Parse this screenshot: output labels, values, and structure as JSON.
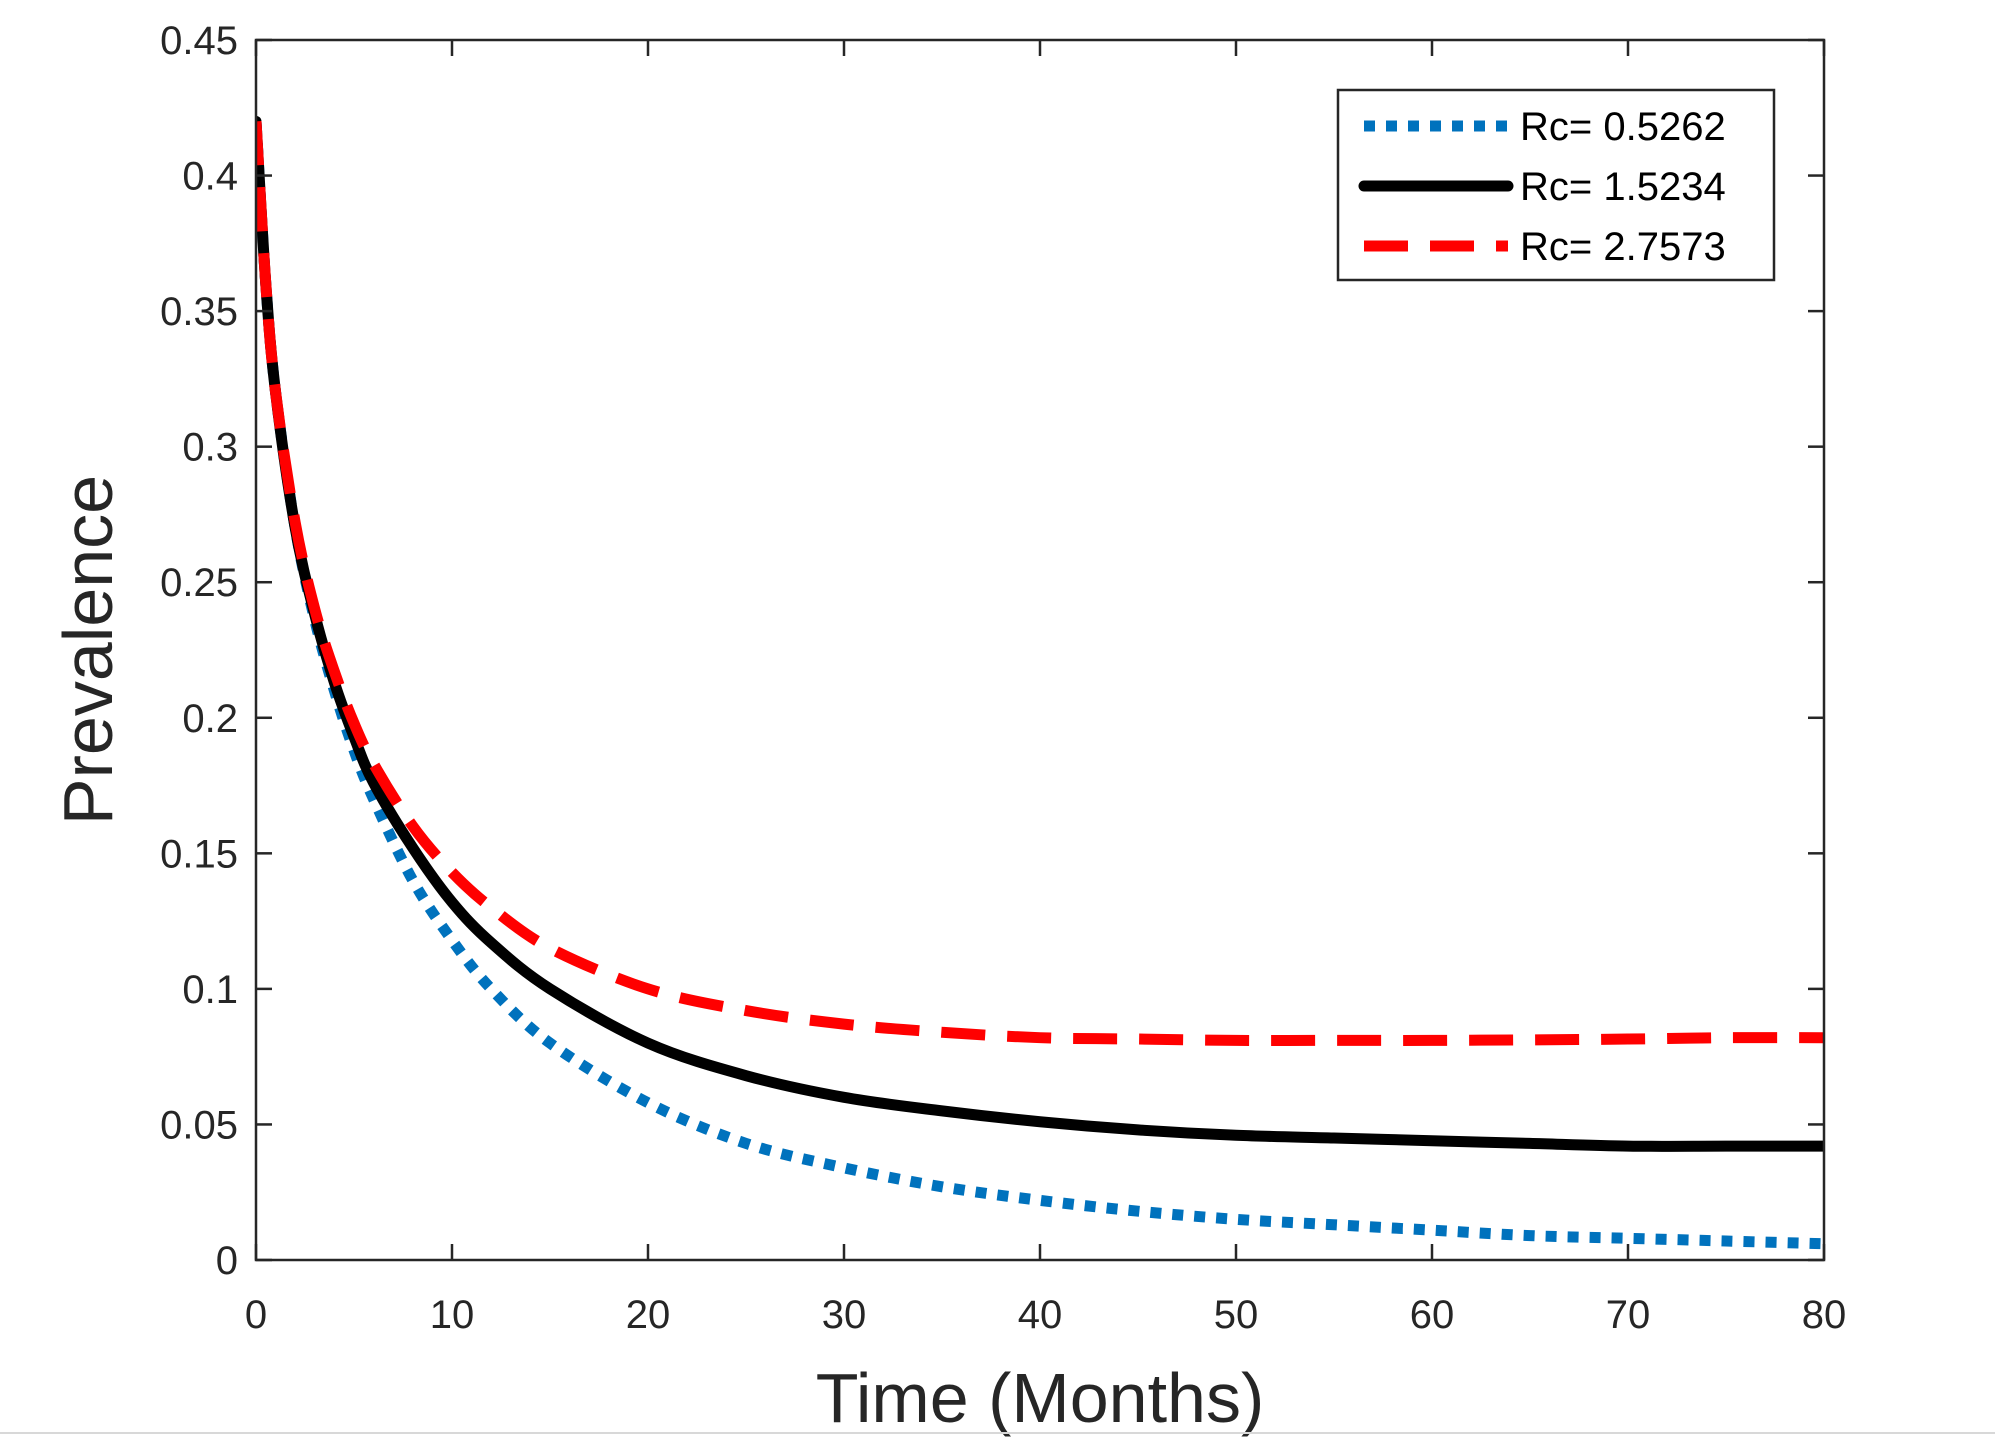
{
  "chart_data": {
    "type": "line",
    "title": "",
    "xlabel": "Time (Months)",
    "ylabel": "Prevalence",
    "xlim": [
      0,
      80
    ],
    "ylim": [
      0,
      0.45
    ],
    "xticks": [
      0,
      10,
      20,
      30,
      40,
      50,
      60,
      70,
      80
    ],
    "xtick_labels": [
      "0",
      "10",
      "20",
      "30",
      "40",
      "50",
      "60",
      "70",
      "80"
    ],
    "yticks": [
      0,
      0.05,
      0.1,
      0.15,
      0.2,
      0.25,
      0.3,
      0.35,
      0.4,
      0.45
    ],
    "ytick_labels": [
      "0",
      "0.05",
      "0.1",
      "0.15",
      "0.2",
      "0.25",
      "0.3",
      "0.35",
      "0.4",
      "0.45"
    ],
    "grid": false,
    "legend_position": "top-right",
    "series": [
      {
        "name": "Rc= 0.5262",
        "style": "dotted",
        "color": "#0072bd",
        "x": [
          0,
          0.5,
          1,
          2,
          3,
          4,
          5,
          6,
          8,
          10,
          12,
          15,
          20,
          25,
          30,
          35,
          40,
          45,
          50,
          55,
          60,
          65,
          70,
          75,
          80
        ],
        "y": [
          0.42,
          0.36,
          0.32,
          0.27,
          0.236,
          0.21,
          0.188,
          0.17,
          0.14,
          0.118,
          0.1,
          0.08,
          0.058,
          0.043,
          0.034,
          0.027,
          0.022,
          0.018,
          0.015,
          0.013,
          0.011,
          0.009,
          0.008,
          0.007,
          0.006
        ]
      },
      {
        "name": "Rc= 1.5234",
        "style": "solid",
        "color": "#000000",
        "x": [
          0,
          0.5,
          1,
          2,
          3,
          4,
          5,
          6,
          8,
          10,
          12,
          15,
          20,
          25,
          30,
          35,
          40,
          45,
          50,
          55,
          60,
          65,
          70,
          75,
          80
        ],
        "y": [
          0.42,
          0.36,
          0.32,
          0.27,
          0.238,
          0.213,
          0.193,
          0.176,
          0.152,
          0.132,
          0.117,
          0.1,
          0.08,
          0.068,
          0.06,
          0.055,
          0.051,
          0.048,
          0.046,
          0.045,
          0.044,
          0.043,
          0.042,
          0.042,
          0.042
        ]
      },
      {
        "name": "Rc= 2.7573",
        "style": "dashed",
        "color": "#ff0000",
        "x": [
          0,
          0.5,
          1,
          2,
          3,
          4,
          5,
          6,
          8,
          10,
          12,
          15,
          20,
          25,
          30,
          35,
          40,
          45,
          50,
          55,
          60,
          65,
          70,
          75,
          80
        ],
        "y": [
          0.42,
          0.36,
          0.32,
          0.272,
          0.24,
          0.217,
          0.198,
          0.183,
          0.16,
          0.143,
          0.13,
          0.115,
          0.1,
          0.092,
          0.087,
          0.084,
          0.082,
          0.0815,
          0.081,
          0.081,
          0.081,
          0.0812,
          0.0815,
          0.082,
          0.082
        ]
      }
    ]
  }
}
